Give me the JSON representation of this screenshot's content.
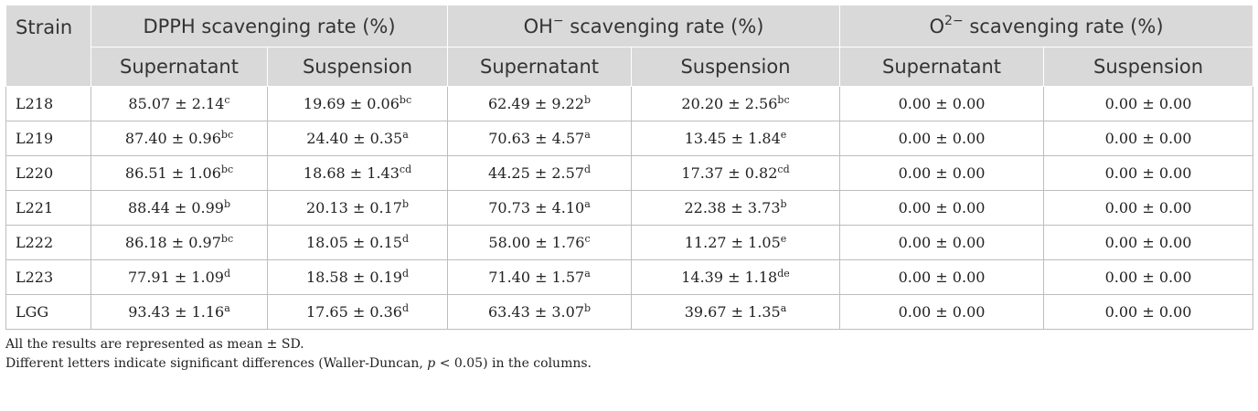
{
  "table": {
    "header": {
      "strain": "Strain",
      "groups": [
        {
          "label_main": "DPPH scavenging rate (%)"
        },
        {
          "label_pre": "OH",
          "label_sup": "−",
          "label_post": " scavenging rate (%)"
        },
        {
          "label_pre": "O",
          "label_sup": "2−",
          "label_post": " scavenging rate (%)"
        }
      ],
      "sub": [
        "Supernatant",
        "Suspension",
        "Supernatant",
        "Suspension",
        "Supernatant",
        "Suspension"
      ]
    },
    "rows": [
      {
        "strain": "L218",
        "cells": [
          {
            "v": "85.07 ± 2.14",
            "s": "c"
          },
          {
            "v": "19.69 ± 0.06",
            "s": "bc"
          },
          {
            "v": "62.49 ± 9.22",
            "s": "b"
          },
          {
            "v": "20.20 ± 2.56",
            "s": "bc"
          },
          {
            "v": "0.00 ± 0.00",
            "s": ""
          },
          {
            "v": "0.00 ± 0.00",
            "s": ""
          }
        ]
      },
      {
        "strain": "L219",
        "cells": [
          {
            "v": "87.40 ± 0.96",
            "s": "bc"
          },
          {
            "v": "24.40 ± 0.35",
            "s": "a"
          },
          {
            "v": "70.63 ± 4.57",
            "s": "a"
          },
          {
            "v": "13.45 ± 1.84",
            "s": "e"
          },
          {
            "v": "0.00 ± 0.00",
            "s": ""
          },
          {
            "v": "0.00 ± 0.00",
            "s": ""
          }
        ]
      },
      {
        "strain": "L220",
        "cells": [
          {
            "v": "86.51 ± 1.06",
            "s": "bc"
          },
          {
            "v": "18.68 ± 1.43",
            "s": "cd"
          },
          {
            "v": "44.25 ± 2.57",
            "s": "d"
          },
          {
            "v": "17.37 ± 0.82",
            "s": "cd"
          },
          {
            "v": "0.00 ± 0.00",
            "s": ""
          },
          {
            "v": "0.00 ± 0.00",
            "s": ""
          }
        ]
      },
      {
        "strain": "L221",
        "cells": [
          {
            "v": "88.44 ± 0.99",
            "s": "b"
          },
          {
            "v": "20.13 ± 0.17",
            "s": "b"
          },
          {
            "v": "70.73 ± 4.10",
            "s": "a"
          },
          {
            "v": "22.38 ± 3.73",
            "s": "b"
          },
          {
            "v": "0.00 ± 0.00",
            "s": ""
          },
          {
            "v": "0.00 ± 0.00",
            "s": ""
          }
        ]
      },
      {
        "strain": "L222",
        "cells": [
          {
            "v": "86.18 ± 0.97",
            "s": "bc"
          },
          {
            "v": "18.05 ± 0.15",
            "s": "d"
          },
          {
            "v": "58.00 ± 1.76",
            "s": "c"
          },
          {
            "v": "11.27 ± 1.05",
            "s": "e"
          },
          {
            "v": "0.00 ± 0.00",
            "s": ""
          },
          {
            "v": "0.00 ± 0.00",
            "s": ""
          }
        ]
      },
      {
        "strain": "L223",
        "cells": [
          {
            "v": "77.91 ± 1.09",
            "s": "d"
          },
          {
            "v": "18.58 ± 0.19",
            "s": "d"
          },
          {
            "v": "71.40 ± 1.57",
            "s": "a"
          },
          {
            "v": "14.39 ± 1.18",
            "s": "de"
          },
          {
            "v": "0.00 ± 0.00",
            "s": ""
          },
          {
            "v": "0.00 ± 0.00",
            "s": ""
          }
        ]
      },
      {
        "strain": "LGG",
        "cells": [
          {
            "v": "93.43 ± 1.16",
            "s": "a"
          },
          {
            "v": "17.65 ± 0.36",
            "s": "d"
          },
          {
            "v": "63.43 ± 3.07",
            "s": "b"
          },
          {
            "v": "39.67 ± 1.35",
            "s": "a"
          },
          {
            "v": "0.00 ± 0.00",
            "s": ""
          },
          {
            "v": "0.00 ± 0.00",
            "s": ""
          }
        ]
      }
    ]
  },
  "notes": {
    "line1": "All the results are represented as mean ± SD.",
    "line2_pre": "Different letters indicate significant differences (Waller-Duncan, ",
    "line2_p": "p",
    "line2_post": " < 0.05) in the columns."
  }
}
